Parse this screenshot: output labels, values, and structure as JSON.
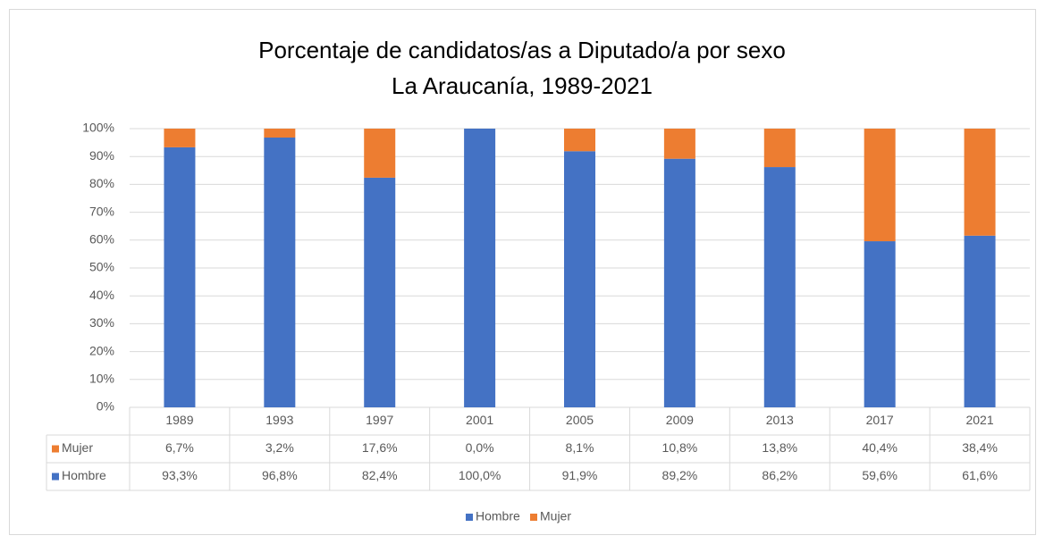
{
  "chart_data": {
    "type": "stacked_bar",
    "title": "Porcentaje de candidatos/as a Diputado/a por sexo",
    "subtitle": "La Araucanía, 1989-2021",
    "categories": [
      "1989",
      "1993",
      "1997",
      "2001",
      "2005",
      "2009",
      "2013",
      "2017",
      "2021"
    ],
    "series": [
      {
        "name": "Hombre",
        "color": "#4472c4",
        "values": [
          93.3,
          96.8,
          82.4,
          100,
          91.9,
          89.2,
          86.2,
          59.6,
          61.6
        ],
        "value_labels": [
          "93,3%",
          "96,8%",
          "82,4%",
          "100,0%",
          "91,9%",
          "89,2%",
          "86,2%",
          "59,6%",
          "61,6%"
        ]
      },
      {
        "name": "Mujer",
        "color": "#ed7d31",
        "values": [
          6.7,
          3.2,
          17.6,
          0,
          8.1,
          10.8,
          13.8,
          40.4,
          38.4
        ],
        "value_labels": [
          "6,7%",
          "3,2%",
          "17,6%",
          "0,0%",
          "8,1%",
          "10,8%",
          "13,8%",
          "40,4%",
          "38,4%"
        ]
      }
    ],
    "ylim": [
      0,
      100
    ],
    "yticks": [
      {
        "value": 0,
        "label": "0%"
      },
      {
        "value": 10,
        "label": "10%"
      },
      {
        "value": 20,
        "label": "20%"
      },
      {
        "value": 30,
        "label": "30%"
      },
      {
        "value": 40,
        "label": "40%"
      },
      {
        "value": 50,
        "label": "50%"
      },
      {
        "value": 60,
        "label": "60%"
      },
      {
        "value": 70,
        "label": "70%"
      },
      {
        "value": 80,
        "label": "80%"
      },
      {
        "value": 90,
        "label": "90%"
      },
      {
        "value": 100,
        "label": "100%"
      }
    ],
    "grid": true,
    "legend": "bottom"
  }
}
